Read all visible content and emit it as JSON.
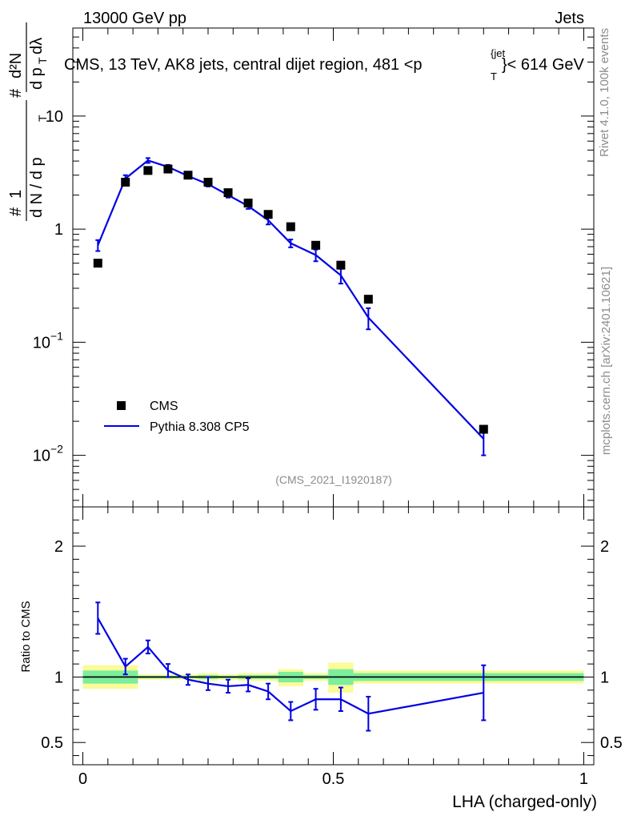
{
  "header": {
    "left": "13000 GeV pp",
    "right": "Jets"
  },
  "side_labels": {
    "rivet": "Rivet 4.1.0,  100k events",
    "mcplots": "mcplots.cern.ch [arXiv:2401.10621]"
  },
  "chart_data": {
    "type": "scatter",
    "title_parts": {
      "prefix": "CMS, 13 TeV, AK8 jets, central dijet region, 481 <p",
      "sup": "{jet",
      "sub": "T",
      "suffix": "}< 614 GeV"
    },
    "analysis_id": "(CMS_2021_I1920187)",
    "ylabel_parts": {
      "hash": "#",
      "one": "1",
      "dN_over": "d N / d p",
      "T": "T",
      "hash2": "#",
      "d2N": "d²N",
      "dpT_dl": "d p",
      "T2": "T",
      "dlambda": "dλ"
    },
    "xlabel": "LHA (charged-only)",
    "xlim": [
      -0.02,
      1.02
    ],
    "main": {
      "yscale": "log",
      "ylim": [
        0.0035,
        60
      ],
      "yticks": [
        {
          "value": 0.01,
          "base": "10",
          "exp": "−2"
        },
        {
          "value": 0.1,
          "base": "10",
          "exp": "−1"
        },
        {
          "value": 1,
          "label": "1"
        },
        {
          "value": 10,
          "label": "10"
        }
      ]
    },
    "ratio": {
      "ylabel": "Ratio to CMS",
      "ylim": [
        0.33,
        2.3
      ],
      "yticks": [
        {
          "value": 0.5,
          "label": "0.5"
        },
        {
          "value": 1,
          "label": "1"
        },
        {
          "value": 2,
          "label": "2"
        }
      ]
    },
    "xticks": [
      {
        "value": 0,
        "label": "0"
      },
      {
        "value": 0.5,
        "label": "0.5"
      },
      {
        "value": 1,
        "label": "1"
      }
    ],
    "series": [
      {
        "name": "CMS",
        "color": "#000000",
        "x": [
          0.03,
          0.085,
          0.13,
          0.17,
          0.21,
          0.25,
          0.29,
          0.33,
          0.37,
          0.415,
          0.465,
          0.515,
          0.57,
          0.8
        ],
        "y": [
          0.5,
          2.6,
          3.3,
          3.4,
          3.0,
          2.6,
          2.1,
          1.7,
          1.35,
          1.05,
          0.72,
          0.48,
          0.24,
          0.017
        ]
      },
      {
        "name": "Pythia 8.308 CP5",
        "color": "#0000e6",
        "x": [
          0.03,
          0.085,
          0.13,
          0.17,
          0.21,
          0.25,
          0.29,
          0.33,
          0.37,
          0.415,
          0.465,
          0.515,
          0.57,
          0.8
        ],
        "y": [
          0.72,
          2.8,
          4.05,
          3.55,
          2.95,
          2.5,
          2.0,
          1.6,
          1.2,
          0.75,
          0.59,
          0.39,
          0.165,
          0.014
        ],
        "yerr": [
          0.08,
          0.2,
          0.2,
          0.15,
          0.12,
          0.12,
          0.1,
          0.09,
          0.1,
          0.06,
          0.07,
          0.06,
          0.035,
          0.004
        ]
      }
    ],
    "ratio_series": {
      "name": "Pythia 8.308 CP5",
      "x": [
        0.03,
        0.085,
        0.13,
        0.17,
        0.21,
        0.25,
        0.29,
        0.33,
        0.37,
        0.415,
        0.465,
        0.515,
        0.57,
        0.8
      ],
      "y": [
        1.45,
        1.08,
        1.23,
        1.05,
        0.98,
        0.95,
        0.93,
        0.94,
        0.89,
        0.74,
        0.83,
        0.83,
        0.72,
        0.88
      ],
      "yerr": [
        0.12,
        0.06,
        0.05,
        0.05,
        0.04,
        0.05,
        0.05,
        0.05,
        0.06,
        0.07,
        0.08,
        0.09,
        0.13,
        0.21
      ]
    },
    "uncertainty_bands": [
      {
        "x0": 0.0,
        "x1": 0.11,
        "green": [
          0.95,
          1.05
        ],
        "yellow": [
          0.91,
          1.09
        ]
      },
      {
        "x0": 0.11,
        "x1": 0.23,
        "green": [
          0.99,
          1.01
        ],
        "yellow": [
          0.98,
          1.02
        ]
      },
      {
        "x0": 0.23,
        "x1": 0.27,
        "green": [
          0.985,
          1.015
        ],
        "yellow": [
          0.97,
          1.03
        ]
      },
      {
        "x0": 0.27,
        "x1": 0.31,
        "green": [
          0.99,
          1.01
        ],
        "yellow": [
          0.98,
          1.02
        ]
      },
      {
        "x0": 0.31,
        "x1": 0.39,
        "green": [
          0.985,
          1.015
        ],
        "yellow": [
          0.97,
          1.03
        ]
      },
      {
        "x0": 0.39,
        "x1": 0.44,
        "green": [
          0.96,
          1.04
        ],
        "yellow": [
          0.93,
          1.06
        ]
      },
      {
        "x0": 0.44,
        "x1": 0.49,
        "green": [
          0.985,
          1.015
        ],
        "yellow": [
          0.97,
          1.03
        ]
      },
      {
        "x0": 0.49,
        "x1": 0.54,
        "green": [
          0.94,
          1.06
        ],
        "yellow": [
          0.88,
          1.11
        ]
      },
      {
        "x0": 0.54,
        "x1": 1.0,
        "green": [
          0.97,
          1.03
        ],
        "yellow": [
          0.95,
          1.05
        ]
      }
    ],
    "legend": [
      {
        "label": "CMS",
        "marker": "square"
      },
      {
        "label": "Pythia 8.308 CP5",
        "marker": "line"
      }
    ],
    "colors": {
      "green_band": "#7cee9c",
      "yellow_band": "#fbfb98"
    }
  }
}
